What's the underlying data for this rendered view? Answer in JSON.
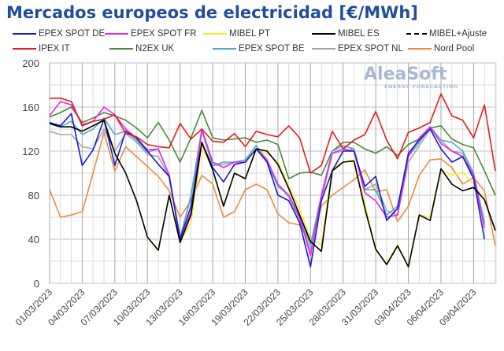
{
  "chart_data": {
    "type": "line",
    "title": "Mercados europeos de electricidad [€/MWh]",
    "xlabel": "",
    "ylabel": "",
    "ylim": [
      0,
      200
    ],
    "yticks": [
      0,
      40,
      80,
      120,
      160,
      200
    ],
    "grid": true,
    "legend_position": "top",
    "x": [
      "01/03/2023",
      "02/03/2023",
      "03/03/2023",
      "04/03/2023",
      "05/03/2023",
      "06/03/2023",
      "07/03/2023",
      "08/03/2023",
      "09/03/2023",
      "10/03/2023",
      "11/03/2023",
      "12/03/2023",
      "13/03/2023",
      "14/03/2023",
      "15/03/2023",
      "16/03/2023",
      "17/03/2023",
      "18/03/2023",
      "19/03/2023",
      "20/03/2023",
      "21/03/2023",
      "22/03/2023",
      "23/03/2023",
      "24/03/2023",
      "25/03/2023",
      "26/03/2023",
      "27/03/2023",
      "28/03/2023",
      "29/03/2023",
      "30/03/2023",
      "31/03/2023",
      "01/04/2023",
      "02/04/2023",
      "03/04/2023",
      "04/04/2023",
      "05/04/2023",
      "06/04/2023",
      "07/04/2023",
      "08/04/2023",
      "09/04/2023",
      "10/04/2023",
      "11/04/2023"
    ],
    "xtick_labels": [
      "01/03/2023",
      "04/03/2023",
      "07/03/2023",
      "10/03/2023",
      "13/03/2023",
      "16/03/2023",
      "19/03/2023",
      "22/03/2023",
      "25/03/2023",
      "28/03/2023",
      "31/03/2023",
      "03/04/2023",
      "06/04/2023",
      "09/04/2023"
    ],
    "series": [
      {
        "name": "EPEX SPOT DE",
        "color": "#1a1ad4",
        "dash": false,
        "values": [
          146,
          143,
          154,
          107,
          121,
          149,
          107,
          138,
          132,
          120,
          108,
          97,
          40,
          70,
          128,
          105,
          92,
          108,
          110,
          122,
          110,
          80,
          75,
          55,
          15,
          75,
          102,
          120,
          120,
          88,
          97,
          57,
          68,
          118,
          130,
          140,
          122,
          110,
          115,
          95,
          40,
          null
        ]
      },
      {
        "name": "EPEX SPOT FR",
        "color": "#e826e8",
        "dash": false,
        "values": [
          152,
          165,
          162,
          144,
          147,
          160,
          153,
          140,
          132,
          121,
          122,
          98,
          38,
          65,
          140,
          110,
          105,
          110,
          110,
          122,
          112,
          90,
          80,
          60,
          25,
          80,
          118,
          122,
          120,
          82,
          75,
          60,
          62,
          115,
          132,
          142,
          127,
          120,
          115,
          98,
          50,
          null
        ]
      },
      {
        "name": "MIBEL PT",
        "color": "#f2ee2a",
        "dash": false,
        "values": [
          145,
          142,
          142,
          138,
          143,
          148,
          118,
          100,
          75,
          42,
          30,
          80,
          38,
          55,
          125,
          103,
          70,
          100,
          95,
          122,
          118,
          110,
          88,
          68,
          40,
          35,
          105,
          110,
          112,
          72,
          30,
          18,
          35,
          15,
          62,
          60,
          103,
          98,
          101,
          90,
          75,
          null
        ]
      },
      {
        "name": "MIBEL ES",
        "color": "#000000",
        "dash": false,
        "values": [
          145,
          142,
          142,
          138,
          143,
          148,
          118,
          100,
          75,
          42,
          30,
          80,
          37,
          62,
          128,
          103,
          70,
          100,
          95,
          122,
          120,
          108,
          86,
          62,
          38,
          29,
          102,
          110,
          111,
          68,
          31,
          17,
          34,
          15,
          62,
          57,
          104,
          90,
          84,
          87,
          76,
          48
        ]
      },
      {
        "name": "MIBEL+Ajuste",
        "color": "#000000",
        "dash": true,
        "values": []
      },
      {
        "name": "IPEX IT",
        "color": "#e61b1b",
        "dash": false,
        "values": [
          168,
          168,
          165,
          143,
          147,
          149,
          153,
          136,
          133,
          126,
          124,
          123,
          145,
          131,
          140,
          129,
          128,
          136,
          124,
          138,
          135,
          133,
          143,
          132,
          100,
          107,
          138,
          122,
          130,
          135,
          156,
          130,
          113,
          137,
          141,
          146,
          172,
          152,
          148,
          132,
          162,
          102
        ]
      },
      {
        "name": "N2EX UK",
        "color": "#4a8a3a",
        "dash": false,
        "values": [
          151,
          155,
          160,
          146,
          150,
          155,
          152,
          148,
          141,
          132,
          146,
          130,
          110,
          132,
          157,
          132,
          130,
          131,
          132,
          128,
          130,
          126,
          95,
          100,
          101,
          98,
          120,
          128,
          128,
          122,
          118,
          124,
          116,
          126,
          131,
          141,
          143,
          131,
          126,
          123,
          102,
          80
        ]
      },
      {
        "name": "EPEX SPOT BE",
        "color": "#4bacc6",
        "dash": false,
        "values": [
          145,
          142,
          147,
          135,
          140,
          150,
          135,
          138,
          130,
          119,
          122,
          98,
          40,
          80,
          140,
          107,
          110,
          110,
          112,
          125,
          110,
          88,
          80,
          60,
          35,
          80,
          120,
          125,
          122,
          85,
          85,
          62,
          70,
          115,
          128,
          142,
          130,
          128,
          120,
          100,
          55,
          null
        ]
      },
      {
        "name": "EPEX SPOT NL",
        "color": "#a6a6a6",
        "dash": false,
        "values": [
          138,
          135,
          135,
          124,
          122,
          140,
          120,
          136,
          128,
          117,
          115,
          96,
          42,
          78,
          138,
          107,
          108,
          110,
          112,
          125,
          112,
          90,
          78,
          58,
          30,
          75,
          118,
          120,
          122,
          85,
          90,
          66,
          62,
          110,
          125,
          140,
          130,
          120,
          118,
          98,
          53,
          null
        ]
      },
      {
        "name": "Nord Pool",
        "color": "#ed8b3e",
        "dash": false,
        "values": [
          85,
          60,
          62,
          65,
          100,
          137,
          102,
          124,
          115,
          106,
          97,
          84,
          60,
          75,
          98,
          90,
          60,
          65,
          85,
          90,
          85,
          63,
          55,
          53,
          37,
          70,
          80,
          87,
          94,
          103,
          83,
          85,
          56,
          70,
          98,
          112,
          113,
          105,
          90,
          96,
          84,
          34
        ]
      }
    ]
  },
  "logo": {
    "main": "AleaSoft",
    "sub": "ENERGY FORECASTING"
  }
}
